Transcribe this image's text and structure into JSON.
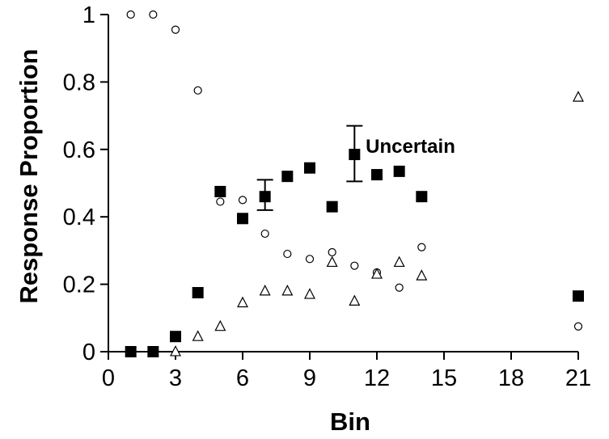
{
  "chart_data": {
    "type": "scatter",
    "xlabel": "Bin",
    "ylabel": "Response Proportion",
    "xlim": [
      0,
      21
    ],
    "ylim": [
      0,
      1
    ],
    "x_ticks": [
      0,
      3,
      6,
      9,
      12,
      15,
      18,
      21
    ],
    "y_ticks": [
      0,
      0.2,
      0.4,
      0.6,
      0.8,
      1
    ],
    "y_tick_labels": [
      "0",
      "0.2",
      "0.4",
      "0.6",
      "0.8",
      "1"
    ],
    "grid": false,
    "series": [
      {
        "marker": "open-circle",
        "x": [
          1,
          2,
          3,
          4,
          5,
          6,
          7,
          8,
          9,
          10,
          11,
          12,
          13,
          14,
          21
        ],
        "y": [
          1.0,
          1.0,
          0.955,
          0.775,
          0.445,
          0.45,
          0.35,
          0.29,
          0.275,
          0.295,
          0.255,
          0.235,
          0.19,
          0.31,
          0.075
        ]
      },
      {
        "marker": "open-triangle",
        "x": [
          3,
          4,
          5,
          6,
          7,
          8,
          9,
          10,
          11,
          12,
          13,
          14,
          21
        ],
        "y": [
          0.0,
          0.045,
          0.075,
          0.145,
          0.18,
          0.18,
          0.17,
          0.265,
          0.15,
          0.23,
          0.265,
          0.225,
          0.755
        ]
      },
      {
        "name": "Uncertain",
        "marker": "filled-square",
        "x": [
          1,
          2,
          3,
          4,
          5,
          6,
          7,
          8,
          9,
          10,
          11,
          12,
          13,
          14,
          21
        ],
        "y": [
          0.0,
          0.0,
          0.045,
          0.175,
          0.475,
          0.395,
          0.46,
          0.52,
          0.545,
          0.43,
          0.585,
          0.525,
          0.535,
          0.46,
          0.165
        ],
        "error_bars": [
          {
            "x": 7,
            "low": 0.42,
            "high": 0.51
          },
          {
            "x": 11,
            "low": 0.505,
            "high": 0.67
          }
        ]
      }
    ],
    "annotations": [
      {
        "text": "Uncertain",
        "x": 11.5,
        "y": 0.59
      }
    ]
  },
  "colors": {
    "ink": "#000000",
    "background": "#ffffff"
  }
}
